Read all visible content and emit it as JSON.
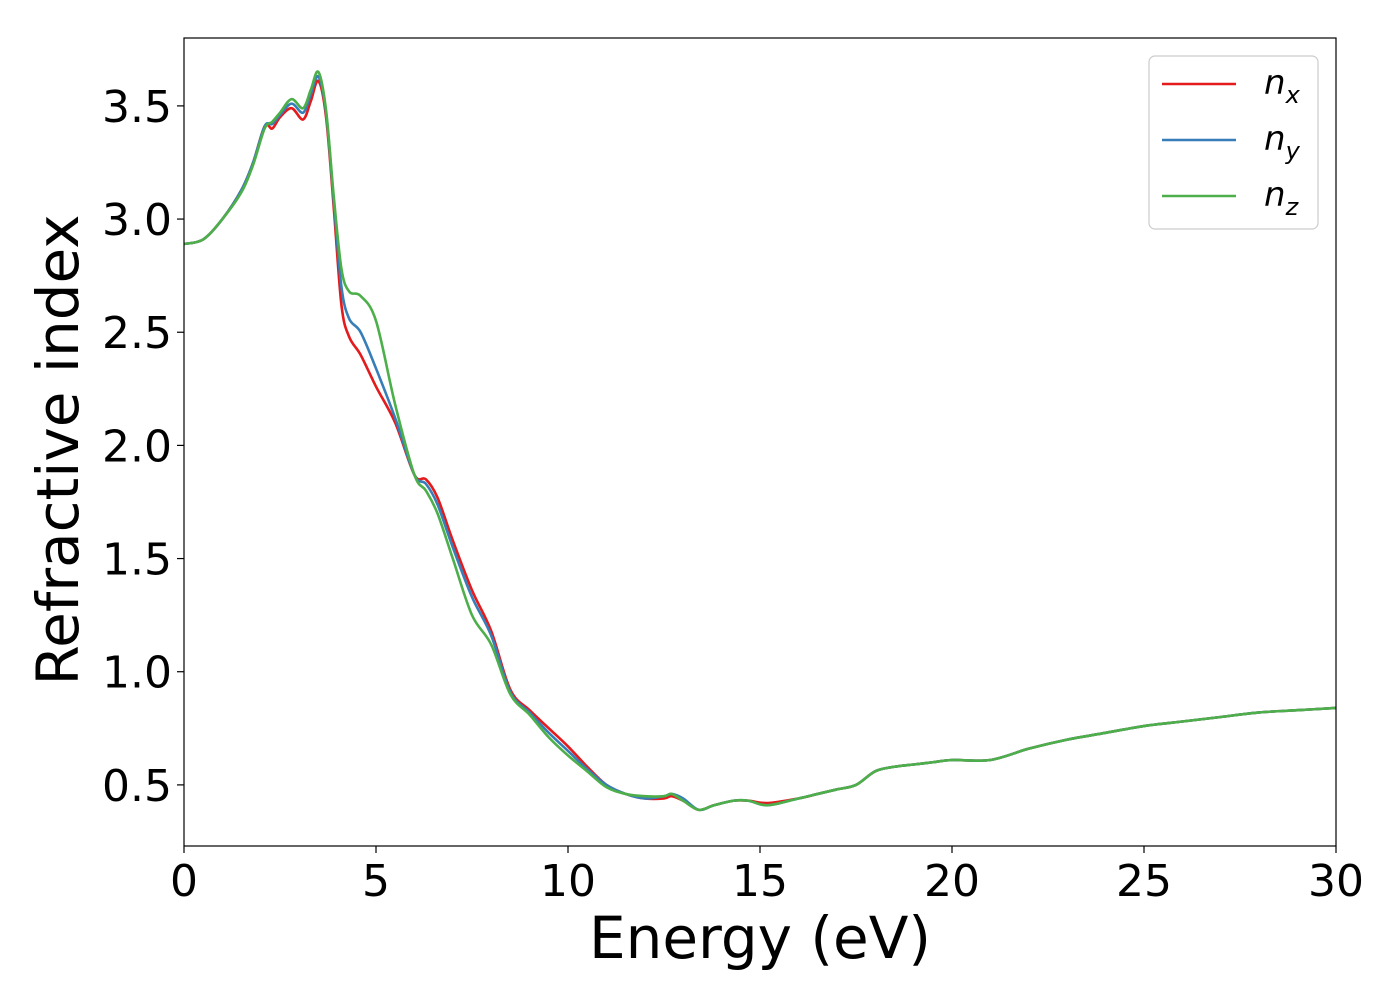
{
  "chart_data": {
    "type": "line",
    "xlabel": "Energy (eV)",
    "ylabel": "Refractive index",
    "xlim": [
      0,
      30
    ],
    "ylim": [
      0.23,
      3.8
    ],
    "xticks": [
      0,
      5,
      10,
      15,
      20,
      25,
      30
    ],
    "xtick_labels": [
      "0",
      "5",
      "10",
      "15",
      "20",
      "25",
      "30"
    ],
    "yticks": [
      0.5,
      1.0,
      1.5,
      2.0,
      2.5,
      3.0,
      3.5
    ],
    "ytick_labels": [
      "0.5",
      "1.0",
      "1.5",
      "2.0",
      "2.5",
      "3.0",
      "3.5"
    ],
    "grid": false,
    "legend_position": "top-right",
    "series": [
      {
        "name": "n_x",
        "label_main": "n",
        "label_sub": "x",
        "color": "#e41a1c",
        "x": [
          0,
          0.5,
          1.0,
          1.5,
          1.8,
          2.1,
          2.3,
          2.5,
          2.8,
          3.1,
          3.3,
          3.5,
          3.7,
          3.9,
          4.1,
          4.3,
          4.6,
          5.0,
          5.5,
          6.0,
          6.3,
          6.6,
          7.0,
          7.5,
          8.0,
          8.5,
          9.0,
          9.5,
          10.0,
          10.5,
          11.0,
          11.5,
          12.0,
          12.5,
          12.7,
          13.0,
          13.4,
          13.8,
          14.3,
          14.7,
          15.2,
          16.0,
          16.5,
          17.0,
          17.5,
          18.0,
          18.5,
          19.0,
          19.5,
          20.0,
          21.0,
          22.0,
          23.0,
          24.0,
          25.0,
          26.0,
          27.0,
          28.0,
          29.0,
          30.0
        ],
        "values": [
          2.89,
          2.91,
          3.0,
          3.13,
          3.25,
          3.41,
          3.4,
          3.45,
          3.49,
          3.44,
          3.52,
          3.61,
          3.45,
          3.05,
          2.62,
          2.48,
          2.4,
          2.26,
          2.1,
          1.87,
          1.85,
          1.77,
          1.58,
          1.36,
          1.18,
          0.92,
          0.83,
          0.75,
          0.67,
          0.58,
          0.5,
          0.46,
          0.44,
          0.44,
          0.45,
          0.43,
          0.39,
          0.41,
          0.43,
          0.43,
          0.42,
          0.44,
          0.46,
          0.48,
          0.5,
          0.56,
          0.58,
          0.59,
          0.6,
          0.61,
          0.61,
          0.66,
          0.7,
          0.73,
          0.76,
          0.78,
          0.8,
          0.82,
          0.83,
          0.84
        ]
      },
      {
        "name": "n_y",
        "label_main": "n",
        "label_sub": "y",
        "color": "#377eb8",
        "x": [
          0,
          0.5,
          1.0,
          1.5,
          1.8,
          2.1,
          2.3,
          2.5,
          2.8,
          3.1,
          3.3,
          3.5,
          3.7,
          3.9,
          4.1,
          4.3,
          4.6,
          5.0,
          5.5,
          6.0,
          6.3,
          6.6,
          7.0,
          7.5,
          8.0,
          8.5,
          9.0,
          9.5,
          10.0,
          10.5,
          11.0,
          11.5,
          12.0,
          12.5,
          12.7,
          13.0,
          13.4,
          13.8,
          14.3,
          14.7,
          15.2,
          16.0,
          16.5,
          17.0,
          17.5,
          18.0,
          18.5,
          19.0,
          19.5,
          20.0,
          21.0,
          22.0,
          23.0,
          24.0,
          25.0,
          26.0,
          27.0,
          28.0,
          29.0,
          30.0
        ],
        "values": [
          2.89,
          2.91,
          3.0,
          3.13,
          3.25,
          3.41,
          3.42,
          3.46,
          3.51,
          3.47,
          3.55,
          3.63,
          3.47,
          3.08,
          2.7,
          2.56,
          2.5,
          2.34,
          2.12,
          1.87,
          1.83,
          1.74,
          1.55,
          1.33,
          1.16,
          0.91,
          0.82,
          0.73,
          0.65,
          0.57,
          0.5,
          0.46,
          0.44,
          0.45,
          0.46,
          0.44,
          0.39,
          0.41,
          0.43,
          0.43,
          0.41,
          0.44,
          0.46,
          0.48,
          0.5,
          0.56,
          0.58,
          0.59,
          0.6,
          0.61,
          0.61,
          0.66,
          0.7,
          0.73,
          0.76,
          0.78,
          0.8,
          0.82,
          0.83,
          0.84
        ]
      },
      {
        "name": "n_z",
        "label_main": "n",
        "label_sub": "z",
        "color": "#4daf4a",
        "x": [
          0,
          0.5,
          1.0,
          1.5,
          1.8,
          2.1,
          2.3,
          2.5,
          2.8,
          3.1,
          3.3,
          3.5,
          3.7,
          3.9,
          4.1,
          4.3,
          4.6,
          5.0,
          5.5,
          6.0,
          6.3,
          6.6,
          7.0,
          7.5,
          8.0,
          8.5,
          9.0,
          9.5,
          10.0,
          10.5,
          11.0,
          11.5,
          12.0,
          12.5,
          12.7,
          13.0,
          13.4,
          13.8,
          14.3,
          14.7,
          15.2,
          16.0,
          16.5,
          17.0,
          17.5,
          18.0,
          18.5,
          19.0,
          19.5,
          20.0,
          21.0,
          22.0,
          23.0,
          24.0,
          25.0,
          26.0,
          27.0,
          28.0,
          29.0,
          30.0
        ],
        "values": [
          2.89,
          2.91,
          3.0,
          3.12,
          3.24,
          3.4,
          3.43,
          3.47,
          3.53,
          3.49,
          3.57,
          3.65,
          3.48,
          3.1,
          2.78,
          2.68,
          2.66,
          2.55,
          2.18,
          1.87,
          1.8,
          1.7,
          1.5,
          1.25,
          1.12,
          0.9,
          0.81,
          0.71,
          0.63,
          0.56,
          0.49,
          0.46,
          0.45,
          0.45,
          0.46,
          0.43,
          0.39,
          0.41,
          0.43,
          0.43,
          0.41,
          0.44,
          0.46,
          0.48,
          0.5,
          0.56,
          0.58,
          0.59,
          0.6,
          0.61,
          0.61,
          0.66,
          0.7,
          0.73,
          0.76,
          0.78,
          0.8,
          0.82,
          0.83,
          0.84
        ]
      }
    ]
  }
}
